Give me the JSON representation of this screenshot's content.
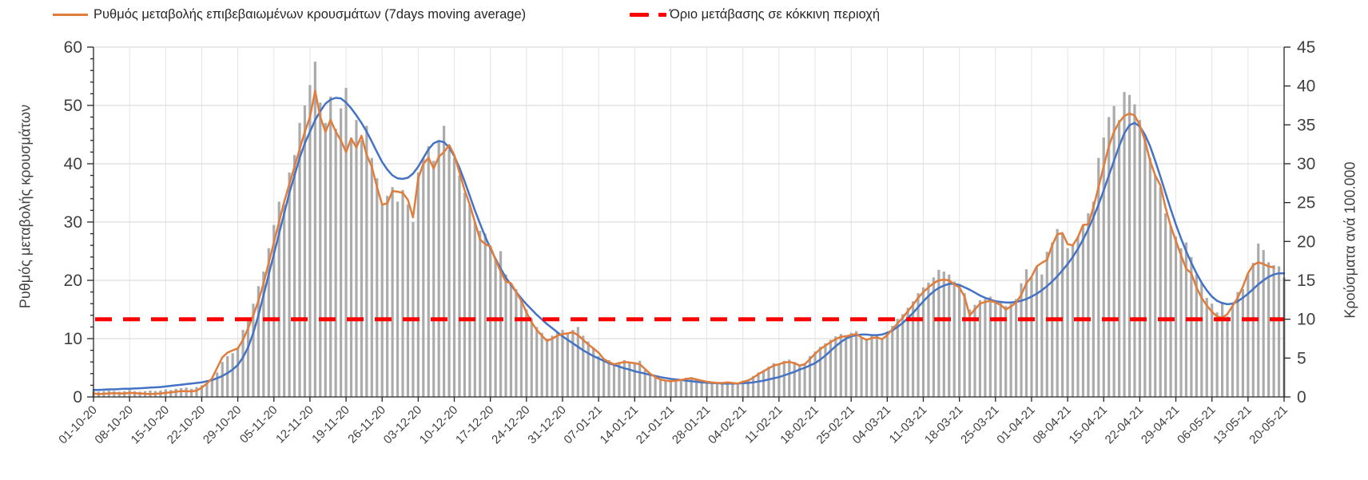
{
  "legend": [
    {
      "label": "Ρυθμός μεταβολής επιβεβαιωμένων κρουσμάτων (7days moving average)",
      "marker": "solid-line",
      "color": "#E07D3C"
    },
    {
      "label": "Όριο μετάβασης σε κόκκινη περιοχή",
      "marker": "dashed-line",
      "color": "#FF0000"
    }
  ],
  "colors": {
    "bars": "#ABABAB",
    "moving_average_line": "#E07D3C",
    "trend_line": "#4472C4",
    "threshold_line": "#FF0000",
    "gridline_horizontal": "#D6D6D6",
    "gridline_vertical": "#E4E4E4",
    "axis": "#262626",
    "text": "#404040"
  },
  "chart_data": {
    "type": "bar",
    "subtype": "bar-and-line combo, dual y-axes, daily data 01-10-20 to 20-05-21",
    "title": "",
    "left_axis": {
      "title": "Ρυθμός μεταβολής κρουσμάτων",
      "min": 0,
      "max": 60,
      "tick_step": 10,
      "minor_tick_step": 2
    },
    "right_axis": {
      "title": "Κρούσματα ανά 100.000",
      "min": 0,
      "max": 45,
      "tick_step": 5
    },
    "x_tick_interval_days": 7,
    "x_tick_labels": [
      "01-10-20",
      "08-10-20",
      "15-10-20",
      "22-10-20",
      "29-10-20",
      "05-11-20",
      "12-11-20",
      "19-11-20",
      "26-11-20",
      "03-12-20",
      "10-12-20",
      "17-12-20",
      "24-12-20",
      "31-12-20",
      "07-01-21",
      "14-01-21",
      "21-01-21",
      "28-01-21",
      "04-02-21",
      "11-02-21",
      "18-02-21",
      "25-02-21",
      "04-03-21",
      "11-03-21",
      "18-03-21",
      "25-03-21",
      "01-04-21",
      "08-04-21",
      "15-04-21",
      "22-04-21",
      "29-04-21",
      "06-05-21",
      "13-05-21",
      "20-05-21"
    ],
    "threshold_line": {
      "label": "Όριο μετάβασης σε κόκκινη περιοχή",
      "value_right_axis": 10,
      "value_left_axis": 13.33,
      "color": "#FF0000",
      "style": "dashed"
    },
    "grid": {
      "horizontal": true,
      "vertical": true
    },
    "legend_position": "top",
    "series": [
      {
        "name": "daily-values-bars",
        "type": "bar",
        "color": "#ABABAB",
        "units": "left-axis scale (0-60)",
        "values": [
          1.0,
          0.9,
          1.0,
          1.1,
          1.0,
          0.9,
          1.0,
          1.2,
          1.0,
          0.9,
          1.0,
          1.1,
          1.0,
          1.1,
          1.3,
          1.2,
          1.4,
          1.5,
          1.6,
          1.4,
          1.7,
          2.0,
          2.4,
          3.0,
          4.2,
          6.0,
          7.0,
          7.5,
          8.5,
          11.5,
          13.5,
          16.0,
          19.0,
          21.5,
          25.5,
          29.5,
          33.5,
          33.0,
          38.5,
          41.5,
          47.0,
          50.0,
          53.5,
          57.5,
          50.5,
          47.0,
          51.5,
          46.0,
          49.5,
          53.0,
          44.5,
          47.5,
          44.0,
          46.5,
          41.0,
          37.5,
          33.0,
          34.5,
          36.0,
          33.5,
          35.5,
          33.0,
          30.0,
          38.5,
          41.0,
          43.0,
          40.5,
          44.0,
          46.5,
          42.5,
          41.0,
          38.0,
          35.0,
          33.0,
          30.0,
          28.5,
          28.0,
          26.0,
          23.5,
          25.0,
          21.0,
          19.5,
          18.5,
          17.0,
          15.0,
          13.5,
          12.0,
          11.0,
          10.0,
          10.5,
          11.0,
          11.5,
          11.0,
          11.5,
          12.0,
          10.5,
          9.5,
          8.5,
          7.0,
          6.5,
          6.3,
          5.6,
          6.0,
          6.3,
          6.0,
          5.8,
          6.2,
          4.6,
          4.0,
          3.6,
          3.0,
          2.8,
          2.7,
          2.9,
          3.0,
          3.3,
          3.4,
          3.0,
          2.8,
          2.5,
          2.4,
          2.3,
          2.5,
          2.6,
          2.3,
          2.2,
          2.8,
          3.0,
          3.6,
          4.2,
          4.6,
          5.2,
          5.8,
          5.6,
          6.2,
          6.4,
          6.0,
          5.4,
          5.8,
          7.0,
          7.8,
          8.6,
          9.2,
          9.8,
          10.4,
          10.8,
          10.6,
          11.0,
          11.3,
          10.2,
          9.8,
          10.5,
          10.6,
          10.0,
          11.2,
          12.2,
          13.4,
          14.2,
          15.3,
          16.4,
          17.8,
          18.8,
          19.6,
          20.5,
          21.8,
          21.5,
          21.0,
          19.8,
          19.4,
          17.8,
          15.0,
          15.8,
          16.6,
          16.8,
          17.2,
          16.6,
          16.2,
          15.6,
          16.0,
          16.8,
          19.5,
          21.9,
          20.5,
          22.3,
          21.0,
          24.9,
          26.5,
          28.8,
          28.0,
          25.5,
          26.0,
          27.5,
          29.5,
          31.5,
          33.5,
          41.0,
          44.5,
          48.0,
          49.9,
          47.5,
          52.3,
          51.8,
          50.2,
          47.5,
          44.5,
          41.0,
          38.0,
          36.0,
          31.5,
          29.3,
          27.5,
          25.5,
          26.5,
          24.0,
          21.0,
          19.5,
          17.0,
          16.0,
          14.5,
          16.3,
          13.8,
          15.5,
          18.0,
          18.5,
          21.1,
          23.0,
          26.3,
          25.2,
          23.1,
          22.6,
          22.4,
          20.5
        ]
      },
      {
        "name": "smoothed-trend-line",
        "type": "line",
        "color": "#4472C4",
        "units": "left-axis scale (0-60)",
        "values": [
          1.2,
          1.2,
          1.25,
          1.3,
          1.3,
          1.35,
          1.4,
          1.4,
          1.45,
          1.5,
          1.55,
          1.6,
          1.65,
          1.7,
          1.8,
          1.9,
          2.0,
          2.1,
          2.2,
          2.3,
          2.4,
          2.5,
          2.7,
          2.9,
          3.2,
          3.6,
          4.1,
          4.7,
          5.5,
          6.8,
          8.5,
          11.0,
          14.0,
          17.5,
          21.0,
          24.5,
          28.0,
          31.5,
          35.0,
          38.0,
          41.0,
          43.5,
          45.5,
          47.5,
          49.0,
          50.3,
          51.0,
          51.3,
          51.2,
          50.5,
          49.5,
          48.3,
          47.0,
          45.5,
          43.8,
          42.0,
          40.3,
          39.0,
          38.0,
          37.5,
          37.4,
          37.6,
          38.3,
          39.5,
          41.0,
          42.5,
          43.5,
          43.9,
          43.7,
          42.8,
          41.3,
          39.3,
          37.0,
          34.5,
          32.0,
          29.7,
          27.5,
          25.5,
          23.7,
          22.0,
          20.5,
          19.2,
          18.0,
          16.9,
          15.9,
          15.0,
          14.1,
          13.3,
          12.5,
          11.8,
          11.1,
          10.4,
          9.8,
          9.2,
          8.6,
          8.0,
          7.5,
          7.0,
          6.6,
          6.2,
          5.8,
          5.5,
          5.2,
          4.9,
          4.7,
          4.4,
          4.2,
          4.0,
          3.8,
          3.6,
          3.4,
          3.25,
          3.1,
          3.0,
          2.9,
          2.8,
          2.7,
          2.6,
          2.5,
          2.45,
          2.4,
          2.35,
          2.3,
          2.3,
          2.3,
          2.3,
          2.35,
          2.4,
          2.5,
          2.65,
          2.8,
          3.0,
          3.2,
          3.4,
          3.7,
          4.0,
          4.3,
          4.7,
          5.0,
          5.4,
          5.8,
          6.4,
          7.1,
          7.9,
          8.7,
          9.4,
          10.0,
          10.4,
          10.6,
          10.7,
          10.7,
          10.6,
          10.6,
          10.7,
          11.0,
          11.4,
          12.0,
          12.7,
          13.5,
          14.4,
          15.4,
          16.4,
          17.3,
          18.1,
          18.7,
          19.1,
          19.4,
          19.4,
          19.2,
          18.8,
          18.4,
          17.9,
          17.4,
          17.0,
          16.7,
          16.4,
          16.3,
          16.2,
          16.2,
          16.3,
          16.5,
          16.8,
          17.2,
          17.7,
          18.3,
          19.0,
          19.8,
          20.7,
          21.7,
          22.8,
          24.0,
          25.4,
          27.0,
          28.8,
          30.8,
          33.0,
          35.4,
          38.0,
          40.5,
          43.0,
          45.2,
          46.6,
          47.0,
          46.4,
          45.0,
          43.0,
          40.5,
          37.8,
          35.0,
          32.2,
          29.6,
          27.2,
          25.0,
          23.0,
          21.2,
          19.6,
          18.3,
          17.2,
          16.5,
          16.1,
          15.9,
          16.0,
          16.4,
          17.0,
          17.7,
          18.5,
          19.3,
          20.0,
          20.6,
          21.0,
          21.2,
          21.2
        ]
      },
      {
        "name": "7day-moving-average-line",
        "type": "line",
        "color": "#E07D3C",
        "units": "left-axis scale (0-60)",
        "values": [
          0.6,
          0.5,
          0.55,
          0.6,
          0.65,
          0.6,
          0.6,
          0.7,
          0.65,
          0.6,
          0.55,
          0.5,
          0.55,
          0.6,
          0.7,
          0.8,
          0.9,
          1.0,
          1.0,
          0.95,
          1.1,
          1.6,
          2.3,
          3.2,
          5.0,
          6.8,
          7.6,
          8.0,
          8.3,
          9.8,
          11.8,
          14.0,
          16.5,
          19.5,
          23.0,
          26.5,
          30.0,
          33.5,
          36.5,
          39.5,
          42.5,
          45.5,
          48.0,
          52.5,
          48.0,
          45.5,
          47.5,
          45.5,
          44.0,
          42.0,
          44.3,
          42.8,
          44.8,
          41.5,
          39.5,
          36.0,
          33.0,
          33.2,
          35.3,
          35.2,
          35.0,
          33.8,
          30.8,
          37.5,
          40.0,
          41.0,
          39.2,
          41.2,
          42.0,
          43.2,
          41.5,
          38.5,
          35.5,
          33.0,
          30.0,
          27.0,
          26.2,
          25.8,
          23.5,
          21.5,
          19.8,
          19.5,
          18.0,
          16.5,
          14.5,
          12.8,
          11.5,
          10.5,
          9.6,
          10.0,
          10.5,
          10.8,
          10.9,
          11.1,
          10.6,
          9.8,
          9.0,
          8.3,
          7.6,
          6.5,
          6.0,
          5.6,
          5.8,
          6.0,
          5.9,
          5.8,
          5.6,
          4.8,
          4.0,
          3.4,
          3.0,
          2.8,
          2.7,
          2.8,
          2.9,
          3.1,
          3.2,
          3.0,
          2.8,
          2.6,
          2.5,
          2.4,
          2.4,
          2.5,
          2.4,
          2.3,
          2.6,
          2.8,
          3.3,
          3.9,
          4.4,
          4.9,
          5.4,
          5.6,
          5.9,
          6.0,
          5.8,
          5.4,
          5.6,
          6.5,
          7.4,
          8.2,
          8.8,
          9.4,
          9.9,
          10.3,
          10.4,
          10.6,
          10.8,
          10.2,
          9.8,
          10.1,
          10.2,
          9.9,
          10.6,
          11.6,
          12.6,
          13.6,
          14.7,
          15.8,
          17.0,
          18.0,
          18.8,
          19.5,
          20.0,
          20.1,
          20.0,
          19.3,
          18.8,
          17.2,
          14.0,
          15.0,
          16.0,
          16.3,
          16.5,
          16.2,
          15.8,
          15.0,
          15.5,
          16.2,
          17.5,
          19.5,
          20.6,
          22.4,
          23.0,
          23.5,
          26.0,
          27.9,
          28.1,
          26.2,
          26.0,
          27.4,
          29.5,
          29.6,
          32.5,
          36.0,
          39.5,
          43.0,
          45.5,
          47.1,
          48.2,
          48.6,
          48.3,
          46.6,
          44.0,
          40.5,
          38.0,
          36.3,
          32.5,
          29.3,
          26.8,
          24.3,
          22.0,
          21.2,
          18.8,
          17.0,
          15.7,
          14.6,
          13.8,
          13.6,
          14.2,
          15.6,
          17.0,
          18.9,
          21.2,
          22.6,
          23.1,
          22.8,
          22.4,
          22.2,
          null,
          null
        ]
      }
    ]
  }
}
